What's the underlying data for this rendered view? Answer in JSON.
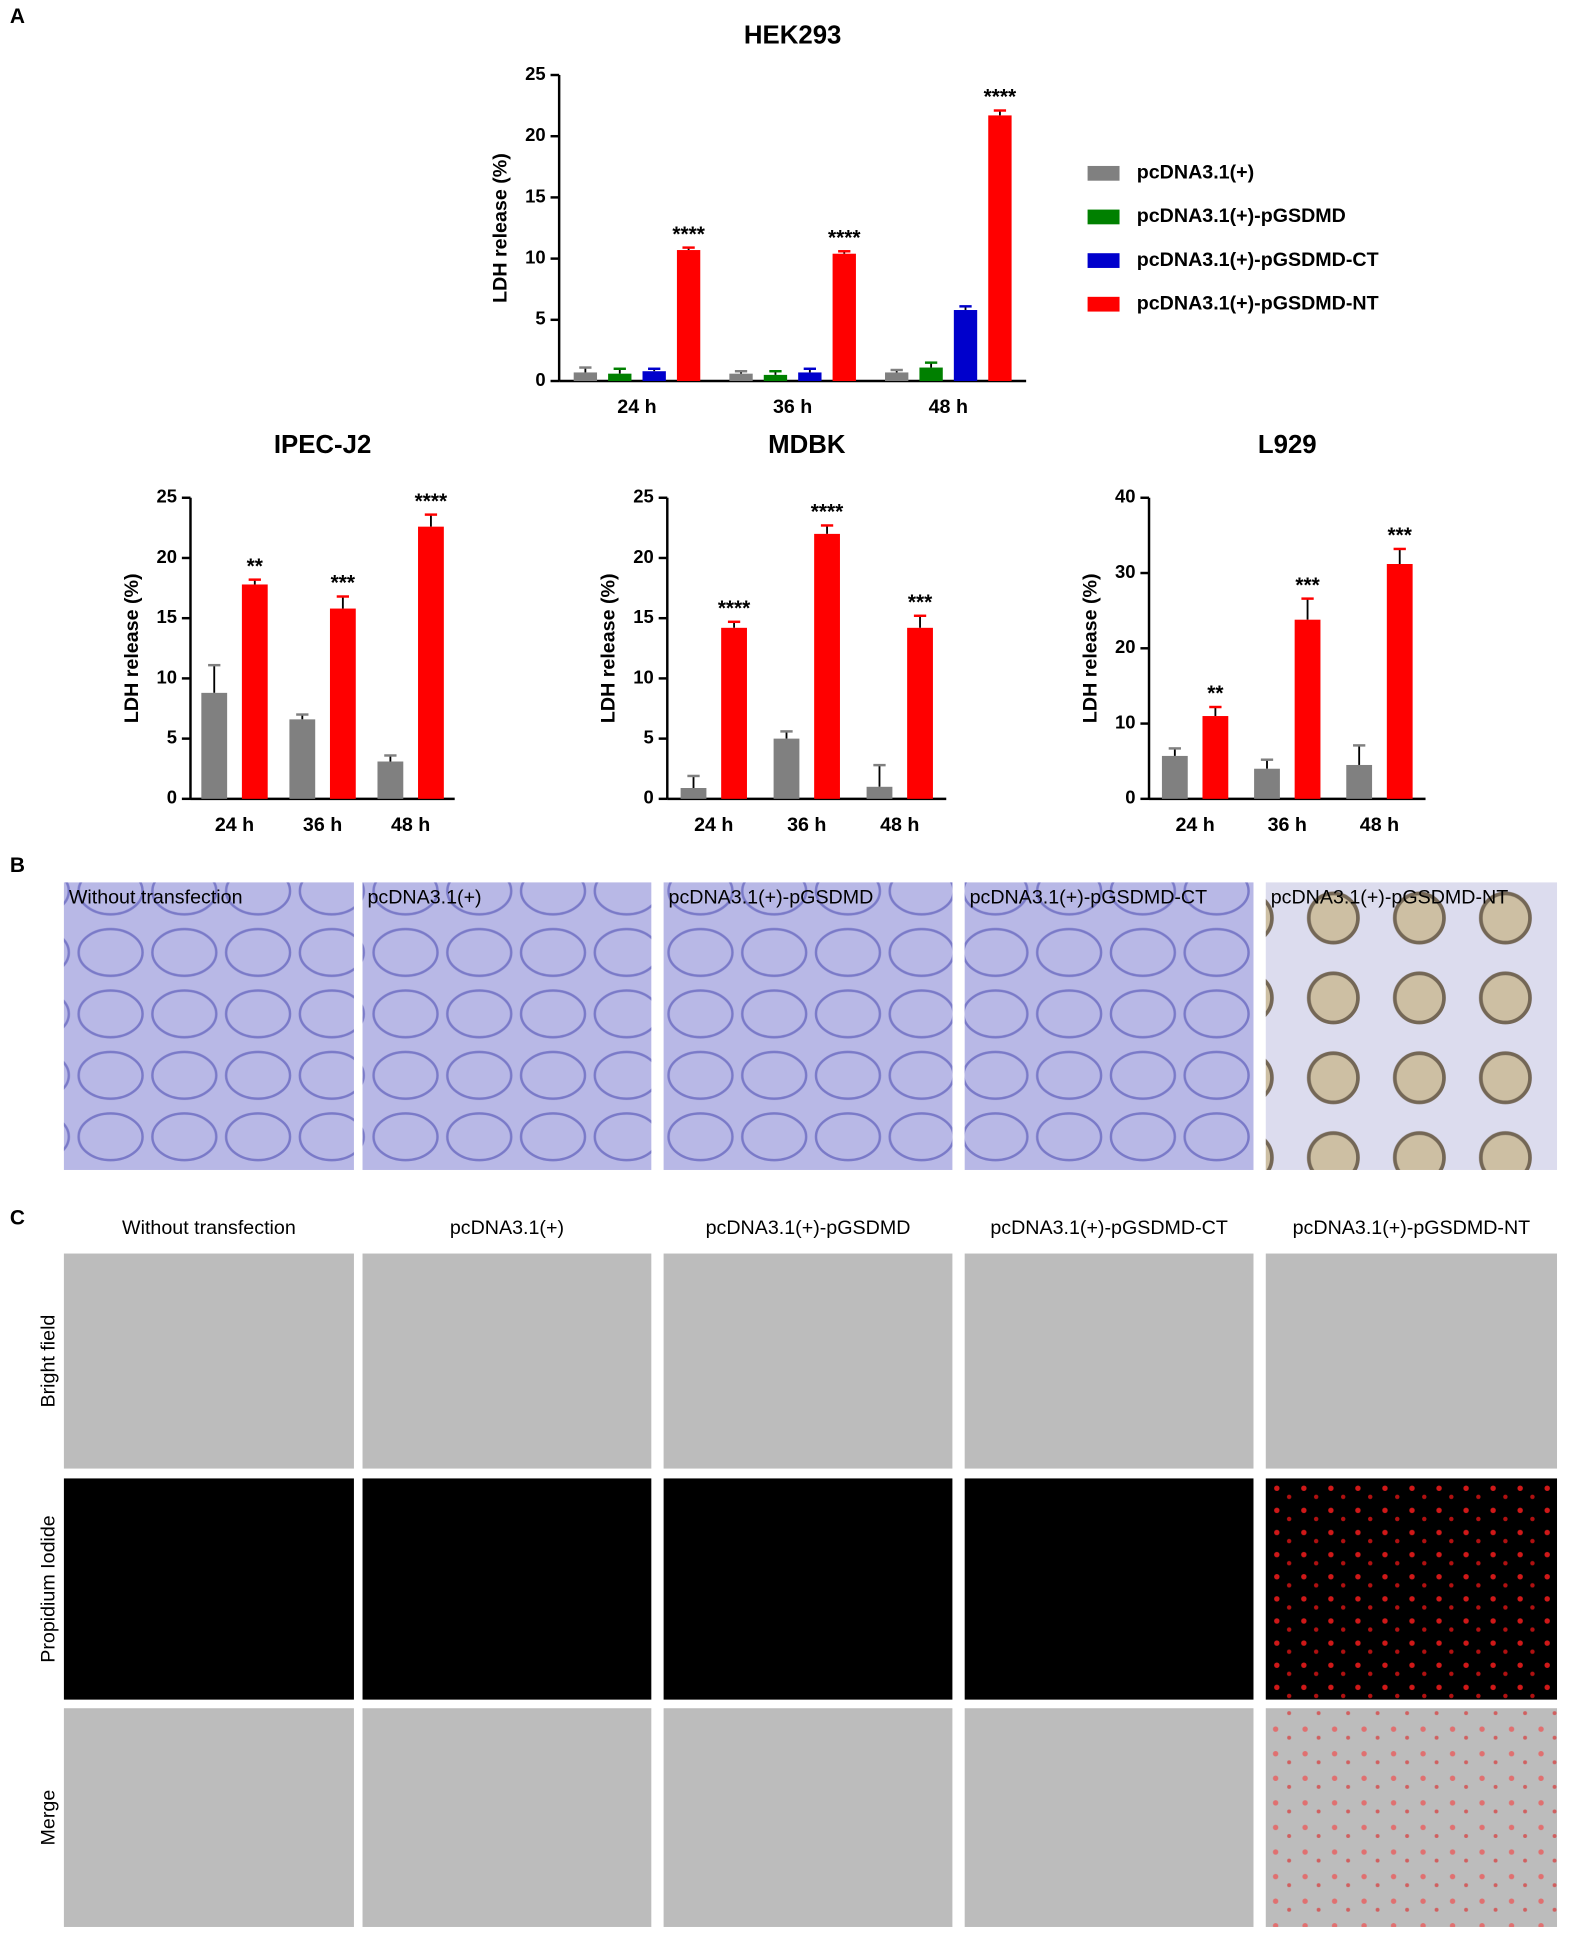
{
  "chart_data": [
    {
      "type": "bar",
      "title": "HEK293",
      "ylabel": "LDH release (%)",
      "categories": [
        "24 h",
        "36 h",
        "48 h"
      ],
      "series": [
        {
          "name": "pcDNA3.1(+)",
          "color": "#808080",
          "values": [
            0.7,
            0.6,
            0.7
          ],
          "errors": [
            0.4,
            0.2,
            0.2
          ]
        },
        {
          "name": "pcDNA3.1(+)-pGSDMD",
          "color": "#008000",
          "values": [
            0.6,
            0.5,
            1.1
          ],
          "errors": [
            0.4,
            0.3,
            0.4
          ]
        },
        {
          "name": "pcDNA3.1(+)-pGSDMD-CT",
          "color": "#0000cc",
          "values": [
            0.8,
            0.7,
            5.8
          ],
          "errors": [
            0.2,
            0.3,
            0.3
          ]
        },
        {
          "name": "pcDNA3.1(+)-pGSDMD-NT",
          "color": "#ff0000",
          "values": [
            10.7,
            10.4,
            21.7
          ],
          "errors": [
            0.2,
            0.2,
            0.4
          ],
          "significance": [
            "****",
            "****",
            "****"
          ]
        }
      ],
      "ylim": [
        0,
        25
      ],
      "yticks": [
        0,
        5,
        10,
        15,
        20,
        25
      ],
      "legend": "right"
    },
    {
      "type": "bar",
      "title": "IPEC-J2",
      "ylabel": "LDH release (%)",
      "categories": [
        "24 h",
        "36 h",
        "48 h"
      ],
      "series": [
        {
          "color": "#808080",
          "values": [
            8.8,
            6.6,
            3.1
          ],
          "errors": [
            2.3,
            0.4,
            0.5
          ]
        },
        {
          "color": "#ff0000",
          "values": [
            17.8,
            15.8,
            22.6
          ],
          "errors": [
            0.4,
            1.0,
            1.0
          ],
          "significance": [
            "**",
            "***",
            "****"
          ]
        }
      ],
      "ylim": [
        0,
        25
      ],
      "yticks": [
        0,
        5,
        10,
        15,
        20,
        25
      ]
    },
    {
      "type": "bar",
      "title": "MDBK",
      "ylabel": "LDH release (%)",
      "categories": [
        "24 h",
        "36 h",
        "48 h"
      ],
      "series": [
        {
          "color": "#808080",
          "values": [
            0.9,
            5.0,
            1.0
          ],
          "errors": [
            1.0,
            0.6,
            1.8
          ]
        },
        {
          "color": "#ff0000",
          "values": [
            14.2,
            22.0,
            14.2
          ],
          "errors": [
            0.5,
            0.7,
            1.0
          ],
          "significance": [
            "****",
            "****",
            "***"
          ]
        }
      ],
      "ylim": [
        0,
        25
      ],
      "yticks": [
        0,
        5,
        10,
        15,
        20,
        25
      ]
    },
    {
      "type": "bar",
      "title": "L929",
      "ylabel": "LDH release (%)",
      "categories": [
        "24 h",
        "36 h",
        "48 h"
      ],
      "series": [
        {
          "color": "#808080",
          "values": [
            5.7,
            4.0,
            4.5
          ],
          "errors": [
            1.0,
            1.2,
            2.6
          ]
        },
        {
          "color": "#ff0000",
          "values": [
            11.0,
            23.8,
            31.2
          ],
          "errors": [
            1.2,
            2.8,
            2.0
          ],
          "significance": [
            "**",
            "***",
            "***"
          ]
        }
      ],
      "ylim": [
        0,
        40
      ],
      "yticks": [
        0,
        10,
        20,
        30,
        40
      ]
    }
  ],
  "panels": {
    "labels": [
      "A",
      "B",
      "C"
    ],
    "images": [
      "Without transfection",
      "pcDNA3.1(+)",
      "pcDNA3.1(+)-pGSDMD",
      "pcDNA3.1(+)-pGSDMD-CT",
      "pcDNA3.1(+)-pGSDMD-NT"
    ],
    "rows": [
      "Bright field",
      "Propidium Iodide",
      "Merge"
    ]
  }
}
